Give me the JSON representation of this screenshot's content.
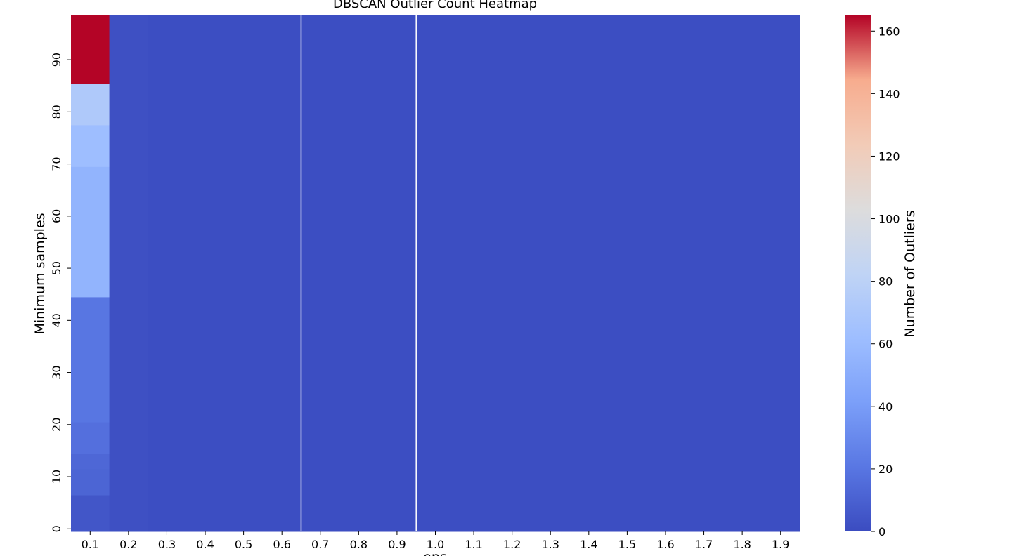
{
  "chart_data": {
    "type": "heatmap",
    "title": "DBSCAN Outlier Count Heatmap",
    "xlabel": "eps",
    "ylabel": "Minimum samples",
    "x_ticks": [
      "0.1",
      "0.2",
      "0.3",
      "0.4",
      "0.5",
      "0.6",
      "0.7",
      "0.8",
      "0.9",
      "1.0",
      "1.1",
      "1.2",
      "1.3",
      "1.4",
      "1.5",
      "1.6",
      "1.7",
      "1.8",
      "1.9"
    ],
    "y_ticks": [
      "0",
      "10",
      "20",
      "30",
      "40",
      "50",
      "60",
      "70",
      "80",
      "90"
    ],
    "y_range": [
      0,
      99
    ],
    "colorscale": "coolwarm",
    "colorbar": {
      "label": "Number of Outliers",
      "min": 0,
      "max": 165,
      "ticks": [
        "0",
        "20",
        "40",
        "60",
        "80",
        "100",
        "120",
        "140",
        "160"
      ]
    },
    "columns": [
      {
        "eps": "0.1",
        "segments": [
          {
            "from": 0,
            "to": 7,
            "value": 5
          },
          {
            "from": 7,
            "to": 12,
            "value": 12
          },
          {
            "from": 12,
            "to": 15,
            "value": 13
          },
          {
            "from": 15,
            "to": 21,
            "value": 17
          },
          {
            "from": 21,
            "to": 45,
            "value": 20
          },
          {
            "from": 45,
            "to": 70,
            "value": 55
          },
          {
            "from": 70,
            "to": 78,
            "value": 62
          },
          {
            "from": 78,
            "to": 86,
            "value": 72
          },
          {
            "from": 86,
            "to": 99,
            "value": 165
          }
        ]
      },
      {
        "eps": "0.2",
        "segments": [
          {
            "from": 0,
            "to": 99,
            "value": 2
          }
        ]
      },
      {
        "eps": "0.3–1.9",
        "segments": [
          {
            "from": 0,
            "to": 99,
            "value": 1
          }
        ]
      }
    ],
    "gaps_after": [
      "0.6",
      "0.9"
    ]
  }
}
